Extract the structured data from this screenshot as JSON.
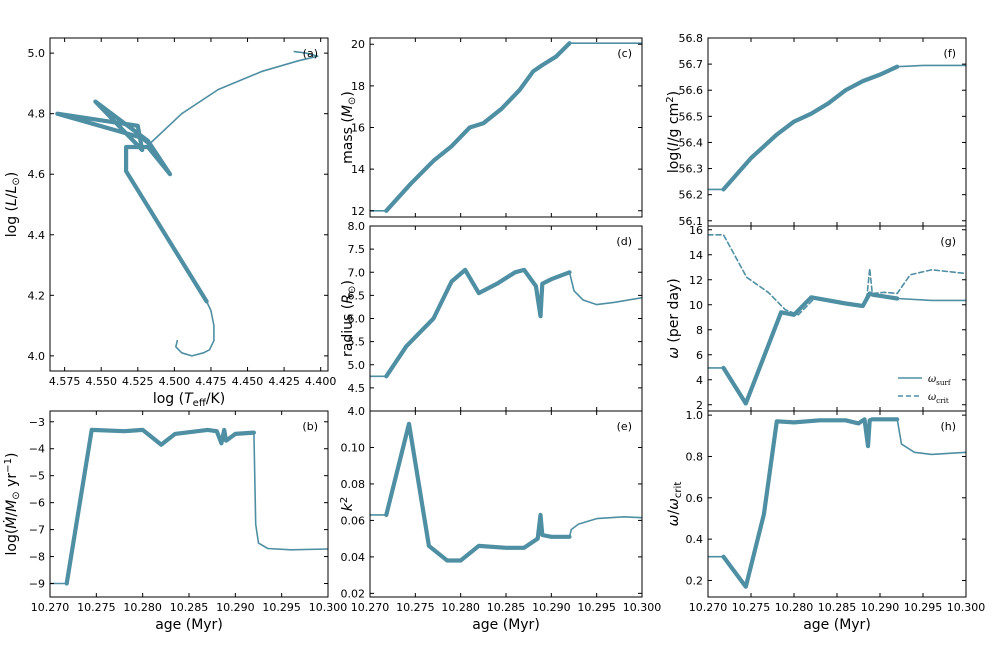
{
  "figure": {
    "line_color": "#4f8fa3",
    "legend": {
      "solid": "ω_surf",
      "dashed": "ω_crit"
    }
  },
  "chart_data": [
    {
      "id": "a",
      "tag": "(a)",
      "type": "line",
      "xlabel": "log (T_eff/K)",
      "ylabel": "log (L/L⊙)",
      "xlim": [
        4.585,
        4.395
      ],
      "ylim": [
        3.95,
        5.05
      ],
      "xticks": [
        4.575,
        4.55,
        4.525,
        4.5,
        4.475,
        4.45,
        4.425,
        4.4
      ],
      "xtick_labels": [
        "4.575",
        "4.550",
        "4.525",
        "4.500",
        "4.475",
        "4.450",
        "4.425",
        "4.400"
      ],
      "yticks": [
        4.0,
        4.2,
        4.4,
        4.6,
        4.8,
        5.0
      ],
      "ytick_labels": [
        "4.0",
        "4.2",
        "4.4",
        "4.6",
        "4.8",
        "5.0"
      ],
      "series": [
        {
          "name": "pre-MS thin",
          "width": 1.6,
          "x": [
            4.498,
            4.499,
            4.495,
            4.488,
            4.48,
            4.476,
            4.473,
            4.473,
            4.475,
            4.478
          ],
          "y": [
            4.05,
            4.03,
            4.01,
            4.0,
            4.01,
            4.02,
            4.05,
            4.1,
            4.15,
            4.18
          ]
        },
        {
          "name": "accretion thick",
          "width": 4.2,
          "x": [
            4.478,
            4.533,
            4.533,
            4.518,
            4.503,
            4.518,
            4.554,
            4.522,
            4.525,
            4.58,
            4.522,
            4.517
          ]
        },
        {
          "name": "accretion thick y",
          "y": [
            4.18,
            4.61,
            4.69,
            4.69,
            4.6,
            4.71,
            4.84,
            4.68,
            4.76,
            4.8,
            4.72,
            4.7
          ]
        },
        {
          "name": "late thin",
          "width": 1.6,
          "x": [
            4.517,
            4.495,
            4.47,
            4.44,
            4.415,
            4.402,
            4.41,
            4.418
          ],
          "y": [
            4.7,
            4.8,
            4.88,
            4.94,
            4.975,
            4.99,
            5.0,
            5.005
          ]
        }
      ]
    },
    {
      "id": "b",
      "tag": "(b)",
      "type": "line",
      "xlabel": "age (Myr)",
      "ylabel": "log(Ṁ/M⊙ yr⁻¹)",
      "xlim": [
        10.27,
        10.3
      ],
      "ylim": [
        -9.5,
        -2.6
      ],
      "xticks": [
        10.27,
        10.275,
        10.28,
        10.285,
        10.29,
        10.295,
        10.3
      ],
      "xtick_labels": [
        "10.270",
        "10.275",
        "10.280",
        "10.285",
        "10.290",
        "10.295",
        "10.300"
      ],
      "yticks": [
        -9,
        -8,
        -7,
        -6,
        -5,
        -4,
        -3
      ],
      "ytick_labels": [
        "−9",
        "−8",
        "−7",
        "−6",
        "−5",
        "−4",
        "−3"
      ],
      "series": [
        {
          "name": "early thin",
          "width": 1.6,
          "x": [
            10.27,
            10.2718
          ],
          "y": [
            -9.0,
            -9.0
          ]
        },
        {
          "name": "accretion thick",
          "width": 4.2,
          "x": [
            10.2718,
            10.2745,
            10.278,
            10.28,
            10.282,
            10.2835,
            10.287,
            10.288,
            10.2885,
            10.2888,
            10.289,
            10.29,
            10.292
          ],
          "y": [
            -9.0,
            -3.3,
            -3.35,
            -3.3,
            -3.85,
            -3.45,
            -3.3,
            -3.35,
            -3.8,
            -3.3,
            -3.7,
            -3.45,
            -3.4
          ]
        },
        {
          "name": "late thin",
          "width": 1.6,
          "x": [
            10.292,
            10.2922,
            10.2925,
            10.2935,
            10.296,
            10.3
          ],
          "y": [
            -3.4,
            -6.8,
            -7.5,
            -7.7,
            -7.75,
            -7.72
          ]
        }
      ]
    },
    {
      "id": "c",
      "tag": "(c)",
      "type": "line",
      "xlabel": "",
      "ylabel": "mass (M⊙)",
      "xlim": [
        10.27,
        10.3
      ],
      "ylim": [
        11.7,
        20.3
      ],
      "xticks": [
        10.27,
        10.275,
        10.28,
        10.285,
        10.29,
        10.295,
        10.3
      ],
      "xtick_labels": [
        "",
        "",
        "",
        "",
        "",
        "",
        ""
      ],
      "yticks": [
        12,
        14,
        16,
        18,
        20
      ],
      "ytick_labels": [
        "12",
        "14",
        "16",
        "18",
        "20"
      ],
      "series": [
        {
          "name": "early thin",
          "width": 1.6,
          "x": [
            10.27,
            10.2718
          ],
          "y": [
            12.0,
            12.0
          ]
        },
        {
          "name": "accretion thick",
          "width": 4.2,
          "x": [
            10.2718,
            10.2745,
            10.277,
            10.279,
            10.281,
            10.2825,
            10.2845,
            10.2865,
            10.288,
            10.289,
            10.2905,
            10.292
          ],
          "y": [
            12.0,
            13.3,
            14.4,
            15.1,
            16.0,
            16.2,
            16.9,
            17.8,
            18.7,
            19.0,
            19.4,
            20.05
          ]
        },
        {
          "name": "late thin",
          "width": 1.6,
          "x": [
            10.292,
            10.3
          ],
          "y": [
            20.05,
            20.05
          ]
        }
      ]
    },
    {
      "id": "d",
      "tag": "(d)",
      "type": "line",
      "xlabel": "",
      "ylabel": "radius (R⊙)",
      "xlim": [
        10.27,
        10.3
      ],
      "ylim": [
        4.0,
        8.0
      ],
      "xticks": [
        10.27,
        10.275,
        10.28,
        10.285,
        10.29,
        10.295,
        10.3
      ],
      "xtick_labels": [
        "",
        "",
        "",
        "",
        "",
        "",
        ""
      ],
      "yticks": [
        4.0,
        4.5,
        5.0,
        5.5,
        6.0,
        6.5,
        7.0,
        7.5,
        8.0
      ],
      "ytick_labels": [
        "4.0",
        "4.5",
        "5.0",
        "5.5",
        "6.0",
        "6.5",
        "7.0",
        "7.5",
        "8.0"
      ],
      "series": [
        {
          "name": "early thin",
          "width": 1.6,
          "x": [
            10.27,
            10.2718
          ],
          "y": [
            4.75,
            4.75
          ]
        },
        {
          "name": "accretion thick",
          "width": 4.2,
          "x": [
            10.2718,
            10.274,
            10.277,
            10.279,
            10.2805,
            10.282,
            10.284,
            10.286,
            10.287,
            10.2883,
            10.2888,
            10.289,
            10.29,
            10.292
          ],
          "y": [
            4.75,
            5.4,
            6.0,
            6.8,
            7.05,
            6.55,
            6.75,
            7.0,
            7.05,
            6.7,
            6.05,
            6.75,
            6.85,
            7.0
          ]
        },
        {
          "name": "late thin",
          "width": 1.6,
          "x": [
            10.292,
            10.2925,
            10.2935,
            10.295,
            10.297,
            10.3
          ],
          "y": [
            7.0,
            6.6,
            6.4,
            6.3,
            6.35,
            6.45
          ]
        }
      ]
    },
    {
      "id": "e",
      "tag": "(e)",
      "type": "line",
      "xlabel": "age (Myr)",
      "ylabel": "k²",
      "xlim": [
        10.27,
        10.3
      ],
      "ylim": [
        0.018,
        0.12
      ],
      "xticks": [
        10.27,
        10.275,
        10.28,
        10.285,
        10.29,
        10.295,
        10.3
      ],
      "xtick_labels": [
        "10.270",
        "10.275",
        "10.280",
        "10.285",
        "10.290",
        "10.295",
        "10.300"
      ],
      "yticks": [
        0.02,
        0.04,
        0.06,
        0.08,
        0.1
      ],
      "ytick_labels": [
        "0.02",
        "0.04",
        "0.06",
        "0.08",
        "0.10"
      ],
      "series": [
        {
          "name": "early thin",
          "width": 1.6,
          "x": [
            10.27,
            10.2718
          ],
          "y": [
            0.063,
            0.063
          ]
        },
        {
          "name": "accretion thick",
          "width": 4.2,
          "x": [
            10.2718,
            10.2743,
            10.2765,
            10.2785,
            10.28,
            10.282,
            10.285,
            10.287,
            10.2885,
            10.2888,
            10.289,
            10.29,
            10.292
          ],
          "y": [
            0.063,
            0.113,
            0.046,
            0.038,
            0.038,
            0.046,
            0.045,
            0.045,
            0.05,
            0.063,
            0.052,
            0.051,
            0.051
          ]
        },
        {
          "name": "late thin",
          "width": 1.6,
          "x": [
            10.292,
            10.2922,
            10.293,
            10.295,
            10.298,
            10.3
          ],
          "y": [
            0.051,
            0.055,
            0.058,
            0.061,
            0.062,
            0.0615
          ]
        }
      ]
    },
    {
      "id": "f",
      "tag": "(f)",
      "type": "line",
      "xlabel": "",
      "ylabel": "log(I/g cm²)",
      "xlim": [
        10.27,
        10.3
      ],
      "ylim": [
        56.08,
        56.8
      ],
      "xticks": [
        10.27,
        10.275,
        10.28,
        10.285,
        10.29,
        10.295,
        10.3
      ],
      "xtick_labels": [
        "",
        "",
        "",
        "",
        "",
        "",
        ""
      ],
      "yticks": [
        56.1,
        56.2,
        56.3,
        56.4,
        56.5,
        56.6,
        56.7,
        56.8
      ],
      "ytick_labels": [
        "56.1",
        "56.2",
        "56.3",
        "56.4",
        "56.5",
        "56.6",
        "56.7",
        "56.8"
      ],
      "series": [
        {
          "name": "early thin",
          "width": 1.6,
          "x": [
            10.27,
            10.2718
          ],
          "y": [
            56.22,
            56.22
          ]
        },
        {
          "name": "accretion thick",
          "width": 4.2,
          "x": [
            10.2718,
            10.275,
            10.278,
            10.28,
            10.282,
            10.284,
            10.286,
            10.288,
            10.29,
            10.292
          ],
          "y": [
            56.22,
            56.34,
            56.43,
            56.48,
            56.51,
            56.55,
            56.6,
            56.635,
            56.66,
            56.69
          ]
        },
        {
          "name": "late thin",
          "width": 1.6,
          "x": [
            10.292,
            10.295,
            10.3
          ],
          "y": [
            56.69,
            56.695,
            56.695
          ]
        }
      ]
    },
    {
      "id": "g",
      "tag": "(g)",
      "type": "line",
      "xlabel": "",
      "ylabel": "ω (per day)",
      "xlim": [
        10.27,
        10.3
      ],
      "ylim": [
        1.5,
        16.3
      ],
      "xticks": [
        10.27,
        10.275,
        10.28,
        10.285,
        10.29,
        10.295,
        10.3
      ],
      "xtick_labels": [
        "",
        "",
        "",
        "",
        "",
        "",
        ""
      ],
      "yticks": [
        2,
        4,
        6,
        8,
        10,
        12,
        14,
        16
      ],
      "ytick_labels": [
        "2",
        "4",
        "6",
        "8",
        "10",
        "12",
        "14",
        "16"
      ],
      "series": [
        {
          "name": "omega_crit",
          "style": "dashed",
          "width": 1.6,
          "x": [
            10.27,
            10.2718,
            10.2745,
            10.277,
            10.279,
            10.2805,
            10.2825,
            10.286,
            10.288,
            10.2885,
            10.2888,
            10.2891,
            10.2905,
            10.292,
            10.2935,
            10.296,
            10.3
          ],
          "y": [
            15.6,
            15.6,
            12.2,
            11.0,
            9.6,
            9.2,
            10.6,
            10.2,
            10.0,
            10.8,
            12.9,
            10.9,
            11.0,
            10.9,
            12.4,
            12.8,
            12.5
          ]
        },
        {
          "name": "omega_surf thin early",
          "width": 1.6,
          "x": [
            10.27,
            10.2718
          ],
          "y": [
            4.95,
            4.95
          ]
        },
        {
          "name": "omega_surf thick",
          "width": 4.2,
          "x": [
            10.2718,
            10.2744,
            10.2785,
            10.28,
            10.282,
            10.286,
            10.288,
            10.2888,
            10.2892,
            10.292
          ],
          "y": [
            4.95,
            2.1,
            9.4,
            9.2,
            10.6,
            10.1,
            9.9,
            10.9,
            10.8,
            10.5
          ]
        },
        {
          "name": "omega_surf thin late",
          "width": 1.6,
          "x": [
            10.292,
            10.296,
            10.3
          ],
          "y": [
            10.5,
            10.35,
            10.35
          ]
        }
      ]
    },
    {
      "id": "h",
      "tag": "(h)",
      "type": "line",
      "xlabel": "age (Myr)",
      "ylabel": "ω/ω_crit",
      "xlim": [
        10.27,
        10.3
      ],
      "ylim": [
        0.12,
        1.02
      ],
      "xticks": [
        10.27,
        10.275,
        10.28,
        10.285,
        10.29,
        10.295,
        10.3
      ],
      "xtick_labels": [
        "10.270",
        "10.275",
        "10.280",
        "10.285",
        "10.290",
        "10.295",
        "10.300"
      ],
      "yticks": [
        0.2,
        0.4,
        0.6,
        0.8,
        1.0
      ],
      "ytick_labels": [
        "0.2",
        "0.4",
        "0.6",
        "0.8",
        "1.0"
      ],
      "series": [
        {
          "name": "early thin",
          "width": 1.6,
          "x": [
            10.27,
            10.2718
          ],
          "y": [
            0.315,
            0.315
          ]
        },
        {
          "name": "accretion thick",
          "width": 4.2,
          "x": [
            10.2718,
            10.2744,
            10.2765,
            10.278,
            10.28,
            10.283,
            10.286,
            10.2875,
            10.2882,
            10.2886,
            10.2888,
            10.2891,
            10.292
          ],
          "y": [
            0.315,
            0.17,
            0.52,
            0.97,
            0.965,
            0.975,
            0.975,
            0.96,
            0.98,
            0.85,
            0.975,
            0.98,
            0.98
          ]
        },
        {
          "name": "late thin",
          "width": 1.6,
          "x": [
            10.292,
            10.2925,
            10.294,
            10.296,
            10.3
          ],
          "y": [
            0.98,
            0.86,
            0.82,
            0.81,
            0.82
          ]
        }
      ]
    }
  ]
}
